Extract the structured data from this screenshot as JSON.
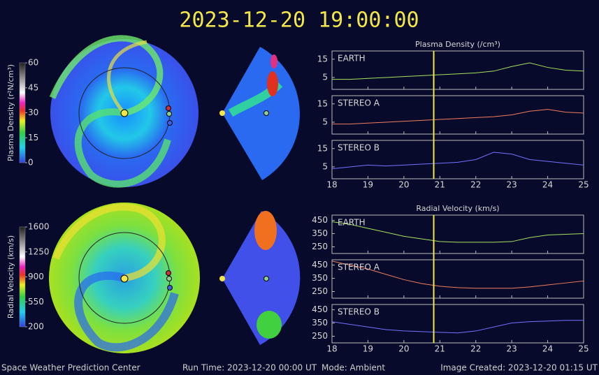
{
  "title": "2023-12-20  19:00:00",
  "footer": {
    "center": "Space Weather Prediction Center",
    "run_time": "Run Time: 2023-12-20 00:00 UT",
    "mode": "Mode: Ambient",
    "created": "Image Created: 2023-12-20 01:15 UT"
  },
  "colorbars": [
    {
      "label": "Plasma Density (r²N/cm³)",
      "lim": [
        0,
        60
      ],
      "ticks": [
        0,
        15,
        30,
        45,
        60
      ]
    },
    {
      "label": "Radial Velocity (km/s)",
      "lim": [
        200,
        1600
      ],
      "ticks": [
        200,
        550,
        900,
        1250,
        1600
      ]
    }
  ],
  "chart_data": [
    {
      "type": "line",
      "title": "Plasma Density (/cm³)",
      "x": [
        18,
        18.5,
        19,
        19.5,
        20,
        20.5,
        21,
        21.5,
        22,
        22.5,
        23,
        23.5,
        24,
        24.5,
        25
      ],
      "xlim": [
        18,
        25
      ],
      "xticks": [
        18,
        19,
        20,
        21,
        22,
        23,
        24,
        25
      ],
      "ylim": [
        -1.5,
        19.5
      ],
      "yticks": [
        5,
        15
      ],
      "marker_x": 20.83,
      "marker_color": "#f3e64a",
      "series": [
        {
          "name": "EARTH",
          "color": "#a6e35c",
          "values": [
            4,
            4,
            4.5,
            5,
            5.5,
            6,
            6.5,
            7,
            7.5,
            8.5,
            11,
            13,
            10.5,
            9,
            8.5
          ]
        },
        {
          "name": "STEREO A",
          "color": "#f07d5e",
          "values": [
            4,
            4,
            4.5,
            5,
            5.5,
            6,
            6.5,
            7,
            7.5,
            8,
            9,
            11,
            12,
            10.5,
            10
          ]
        },
        {
          "name": "STEREO B",
          "color": "#7272ff",
          "values": [
            4,
            5,
            6,
            5.5,
            6,
            6.5,
            7,
            7.5,
            9,
            13,
            12,
            9,
            8,
            7,
            6
          ]
        }
      ]
    },
    {
      "type": "line",
      "title": "Radial Velocity (km/s)",
      "x": [
        18,
        18.5,
        19,
        19.5,
        20,
        20.5,
        21,
        21.5,
        22,
        22.5,
        23,
        23.5,
        24,
        24.5,
        25
      ],
      "xlim": [
        18,
        25
      ],
      "xticks": [
        18,
        19,
        20,
        21,
        22,
        23,
        24,
        25
      ],
      "ylim": [
        200,
        490
      ],
      "yticks": [
        250,
        350,
        450
      ],
      "marker_x": 20.83,
      "marker_color": "#f3e64a",
      "series": [
        {
          "name": "EARTH",
          "color": "#a6e35c",
          "values": [
            440,
            420,
            390,
            360,
            330,
            310,
            290,
            285,
            285,
            285,
            290,
            320,
            340,
            345,
            350
          ]
        },
        {
          "name": "STEREO A",
          "color": "#f07d5e",
          "values": [
            480,
            450,
            420,
            380,
            340,
            310,
            290,
            280,
            275,
            275,
            275,
            285,
            300,
            315,
            330
          ]
        },
        {
          "name": "STEREO B",
          "color": "#7272ff",
          "values": [
            360,
            340,
            320,
            300,
            290,
            285,
            280,
            275,
            290,
            320,
            350,
            360,
            365,
            370,
            370
          ]
        }
      ]
    }
  ]
}
